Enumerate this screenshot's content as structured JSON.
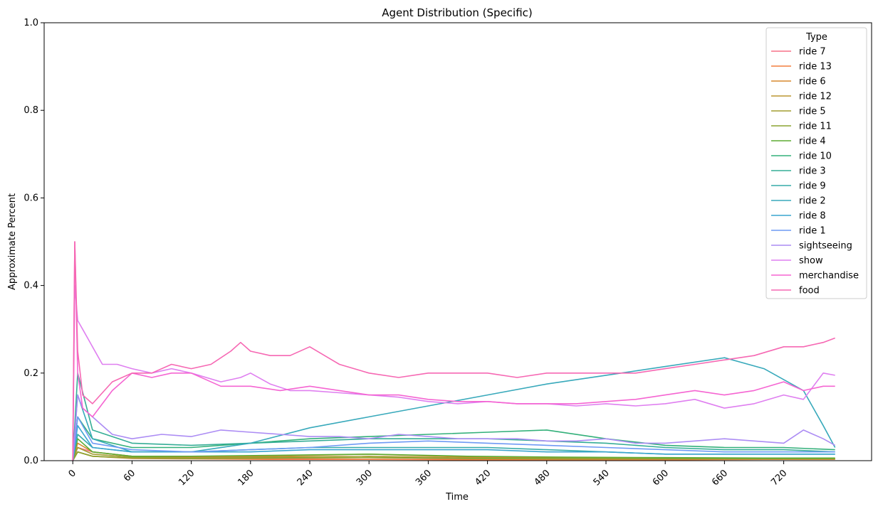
{
  "chart_data": {
    "type": "line",
    "title": "Agent Distribution (Specific)",
    "xlabel": "Time",
    "ylabel": "Approximate Percent",
    "xlim": [
      -29,
      809
    ],
    "ylim": [
      0,
      1
    ],
    "x_ticks": [
      0,
      60,
      120,
      180,
      240,
      300,
      360,
      420,
      480,
      540,
      600,
      660,
      720
    ],
    "x_tick_labels": [
      "0",
      "60",
      "120",
      "180",
      "240",
      "300",
      "360",
      "420",
      "480",
      "540",
      "600",
      "660",
      "720"
    ],
    "x_tick_rotation": 45,
    "y_ticks": [
      0,
      0.2,
      0.4,
      0.6,
      0.8,
      1.0
    ],
    "y_tick_labels": [
      "0.0",
      "0.2",
      "0.4",
      "0.6",
      "0.8",
      "1.0"
    ],
    "grid": false,
    "legend": {
      "title": "Type",
      "placement": "top-right"
    },
    "series": [
      {
        "name": "ride 7",
        "color": "#f77189",
        "x": [
          0,
          5,
          20,
          60,
          120,
          200,
          300,
          400,
          500,
          600,
          700,
          772
        ],
        "values": [
          0,
          0.03,
          0.02,
          0.01,
          0.005,
          0.004,
          0.003,
          0.003,
          0.003,
          0.003,
          0.004,
          0.004
        ]
      },
      {
        "name": "ride 13",
        "color": "#f47e3e",
        "x": [
          0,
          5,
          20,
          60,
          120,
          200,
          300,
          400,
          500,
          600,
          700,
          772
        ],
        "values": [
          0,
          0.02,
          0.01,
          0.005,
          0.004,
          0.003,
          0.003,
          0.002,
          0.002,
          0.002,
          0.003,
          0.003
        ]
      },
      {
        "name": "ride 6",
        "color": "#d7892f",
        "x": [
          0,
          5,
          20,
          60,
          120,
          200,
          300,
          400,
          500,
          600,
          700,
          772
        ],
        "values": [
          0,
          0.04,
          0.02,
          0.01,
          0.008,
          0.01,
          0.015,
          0.008,
          0.006,
          0.005,
          0.005,
          0.005
        ]
      },
      {
        "name": "ride 12",
        "color": "#bb9531",
        "x": [
          0,
          5,
          20,
          60,
          120,
          200,
          300,
          400,
          500,
          600,
          700,
          772
        ],
        "values": [
          0,
          0.02,
          0.01,
          0.006,
          0.005,
          0.006,
          0.007,
          0.005,
          0.004,
          0.004,
          0.004,
          0.004
        ]
      },
      {
        "name": "ride 5",
        "color": "#a39d31",
        "x": [
          0,
          5,
          20,
          60,
          120,
          200,
          300,
          400,
          500,
          600,
          700,
          772
        ],
        "values": [
          0,
          0.03,
          0.015,
          0.008,
          0.006,
          0.008,
          0.01,
          0.006,
          0.005,
          0.005,
          0.005,
          0.005
        ]
      },
      {
        "name": "ride 11",
        "color": "#8ba431",
        "x": [
          0,
          5,
          20,
          60,
          120,
          200,
          300,
          400,
          500,
          600,
          700,
          772
        ],
        "values": [
          0,
          0.02,
          0.01,
          0.006,
          0.005,
          0.006,
          0.007,
          0.005,
          0.004,
          0.004,
          0.004,
          0.004
        ]
      },
      {
        "name": "ride 4",
        "color": "#5dac32",
        "x": [
          0,
          5,
          20,
          60,
          120,
          200,
          300,
          400,
          500,
          600,
          700,
          772
        ],
        "values": [
          0,
          0.05,
          0.02,
          0.01,
          0.01,
          0.012,
          0.015,
          0.01,
          0.008,
          0.007,
          0.006,
          0.006
        ]
      },
      {
        "name": "ride 10",
        "color": "#33b07a",
        "x": [
          0,
          5,
          20,
          60,
          120,
          180,
          240,
          300,
          360,
          420,
          480,
          540,
          600,
          660,
          720,
          772
        ],
        "values": [
          0,
          0.1,
          0.05,
          0.03,
          0.03,
          0.04,
          0.05,
          0.055,
          0.06,
          0.065,
          0.07,
          0.05,
          0.035,
          0.03,
          0.03,
          0.025
        ]
      },
      {
        "name": "ride 3",
        "color": "#35ad96",
        "x": [
          0,
          5,
          20,
          60,
          120,
          180,
          240,
          300,
          360,
          420,
          480,
          540,
          600,
          660,
          720,
          772
        ],
        "values": [
          0,
          0.2,
          0.07,
          0.04,
          0.035,
          0.04,
          0.045,
          0.05,
          0.05,
          0.05,
          0.045,
          0.04,
          0.03,
          0.025,
          0.025,
          0.02
        ]
      },
      {
        "name": "ride 9",
        "color": "#36aba9",
        "x": [
          0,
          5,
          20,
          60,
          120,
          180,
          240,
          300,
          360,
          420,
          480,
          540,
          600,
          660,
          720,
          772
        ],
        "values": [
          0,
          0.06,
          0.03,
          0.02,
          0.02,
          0.025,
          0.03,
          0.03,
          0.03,
          0.03,
          0.025,
          0.02,
          0.015,
          0.015,
          0.015,
          0.015
        ]
      },
      {
        "name": "ride 2",
        "color": "#38a9bb",
        "x": [
          0,
          5,
          20,
          60,
          120,
          180,
          240,
          300,
          360,
          420,
          480,
          540,
          600,
          660,
          700,
          740,
          760,
          772
        ],
        "values": [
          0,
          0.15,
          0.05,
          0.02,
          0.02,
          0.04,
          0.075,
          0.1,
          0.125,
          0.15,
          0.175,
          0.195,
          0.215,
          0.235,
          0.21,
          0.16,
          0.08,
          0.03
        ]
      },
      {
        "name": "ride 8",
        "color": "#3aa5cf",
        "x": [
          0,
          5,
          20,
          60,
          120,
          180,
          240,
          300,
          360,
          420,
          480,
          540,
          600,
          660,
          720,
          772
        ],
        "values": [
          0,
          0.08,
          0.03,
          0.02,
          0.02,
          0.02,
          0.025,
          0.025,
          0.025,
          0.025,
          0.02,
          0.02,
          0.015,
          0.015,
          0.015,
          0.015
        ]
      },
      {
        "name": "ride 1",
        "color": "#6e9af4",
        "x": [
          0,
          5,
          20,
          60,
          120,
          180,
          240,
          300,
          360,
          420,
          480,
          540,
          600,
          660,
          720,
          772
        ],
        "values": [
          0,
          0.1,
          0.04,
          0.025,
          0.02,
          0.025,
          0.03,
          0.04,
          0.045,
          0.04,
          0.035,
          0.03,
          0.025,
          0.02,
          0.02,
          0.02
        ]
      },
      {
        "name": "sightseeing",
        "color": "#ac8cf4",
        "x": [
          0,
          5,
          10,
          20,
          40,
          60,
          90,
          120,
          150,
          180,
          210,
          240,
          270,
          300,
          330,
          360,
          390,
          420,
          450,
          480,
          510,
          540,
          570,
          600,
          630,
          660,
          690,
          720,
          740,
          760,
          772
        ],
        "values": [
          0,
          0.15,
          0.12,
          0.1,
          0.06,
          0.05,
          0.06,
          0.055,
          0.07,
          0.065,
          0.06,
          0.055,
          0.055,
          0.05,
          0.06,
          0.055,
          0.05,
          0.05,
          0.05,
          0.045,
          0.045,
          0.05,
          0.04,
          0.04,
          0.045,
          0.05,
          0.045,
          0.04,
          0.07,
          0.05,
          0.035
        ]
      },
      {
        "name": "show",
        "color": "#df7ff0",
        "x": [
          0,
          2,
          5,
          10,
          20,
          30,
          45,
          60,
          80,
          100,
          120,
          150,
          170,
          180,
          200,
          220,
          240,
          270,
          300,
          330,
          360,
          390,
          420,
          450,
          480,
          510,
          540,
          570,
          600,
          630,
          660,
          690,
          720,
          740,
          760,
          772
        ],
        "values": [
          0,
          0.4,
          0.32,
          0.3,
          0.26,
          0.22,
          0.22,
          0.21,
          0.2,
          0.21,
          0.2,
          0.18,
          0.19,
          0.2,
          0.175,
          0.16,
          0.16,
          0.155,
          0.15,
          0.145,
          0.135,
          0.13,
          0.135,
          0.13,
          0.13,
          0.125,
          0.13,
          0.125,
          0.13,
          0.14,
          0.12,
          0.13,
          0.15,
          0.14,
          0.2,
          0.195
        ]
      },
      {
        "name": "merchandise",
        "color": "#f565d2",
        "x": [
          0,
          2,
          5,
          10,
          20,
          40,
          60,
          80,
          100,
          120,
          150,
          180,
          210,
          240,
          270,
          300,
          330,
          360,
          390,
          420,
          450,
          480,
          510,
          540,
          570,
          600,
          630,
          660,
          690,
          720,
          740,
          760,
          772
        ],
        "values": [
          0,
          0.5,
          0.2,
          0.12,
          0.1,
          0.16,
          0.2,
          0.19,
          0.2,
          0.2,
          0.17,
          0.17,
          0.16,
          0.17,
          0.16,
          0.15,
          0.15,
          0.14,
          0.135,
          0.135,
          0.13,
          0.13,
          0.13,
          0.135,
          0.14,
          0.15,
          0.16,
          0.15,
          0.16,
          0.18,
          0.16,
          0.17,
          0.17
        ]
      },
      {
        "name": "food",
        "color": "#f668b3",
        "x": [
          0,
          2,
          5,
          10,
          20,
          40,
          60,
          80,
          100,
          120,
          140,
          160,
          170,
          180,
          200,
          220,
          240,
          270,
          300,
          330,
          360,
          390,
          420,
          450,
          480,
          510,
          540,
          570,
          600,
          630,
          660,
          690,
          720,
          740,
          760,
          772
        ],
        "values": [
          0,
          0.5,
          0.25,
          0.15,
          0.13,
          0.18,
          0.2,
          0.2,
          0.22,
          0.21,
          0.22,
          0.25,
          0.27,
          0.25,
          0.24,
          0.24,
          0.26,
          0.22,
          0.2,
          0.19,
          0.2,
          0.2,
          0.2,
          0.19,
          0.2,
          0.2,
          0.2,
          0.2,
          0.21,
          0.22,
          0.23,
          0.24,
          0.26,
          0.26,
          0.27,
          0.28
        ]
      }
    ]
  }
}
